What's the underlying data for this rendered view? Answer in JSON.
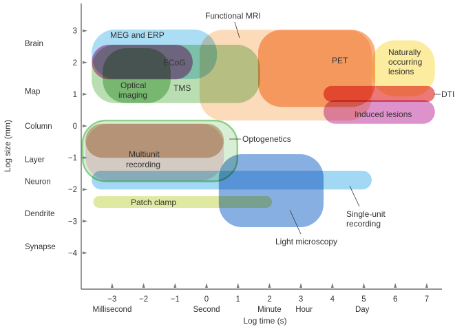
{
  "chart_data": {
    "type": "diagram",
    "xlabel": "Log time (s)",
    "ylabel": "Log size (mm)",
    "xlim": [
      -3.95,
      7.4
    ],
    "ylim": [
      -5.2,
      3.85
    ],
    "x_ticks": [
      -3,
      -2,
      -1,
      0,
      1,
      2,
      3,
      4,
      5,
      6,
      7
    ],
    "x_tick_labels": [
      "−3",
      "−2",
      "−1",
      "0",
      "1",
      "2",
      "3",
      "4",
      "5",
      "6",
      "7"
    ],
    "y_ticks": [
      3,
      2,
      1,
      0,
      -1,
      -2,
      -3,
      -4
    ],
    "y_tick_labels": [
      "3",
      "2",
      "1",
      "0",
      "−1",
      "−2",
      "−3",
      "−4"
    ],
    "time_labels": [
      {
        "text": "Millisecond",
        "x": -3
      },
      {
        "text": "Second",
        "x": 0
      },
      {
        "text": "Minute",
        "x": 2
      },
      {
        "text": "Hour",
        "x": 3.1
      },
      {
        "text": "Day",
        "x": 4.95
      }
    ],
    "size_labels": [
      {
        "text": "Brain",
        "y": 2.6
      },
      {
        "text": "Map",
        "y": 1.1
      },
      {
        "text": "Column",
        "y": 0
      },
      {
        "text": "Layer",
        "y": -1.05
      },
      {
        "text": "Neuron",
        "y": -1.75
      },
      {
        "text": "Dendrite",
        "y": -2.75
      },
      {
        "text": "Synapse",
        "y": -3.8
      }
    ],
    "regions": [
      {
        "name": "Functional MRI",
        "x": [
          -0.22,
          5.25
        ],
        "y": [
          0.17,
          3.03
        ],
        "color": "#fbd3ab"
      },
      {
        "name": "PET",
        "x": [
          1.64,
          5.36
        ],
        "y": [
          0.6,
          3.03
        ],
        "color": "#f5a065"
      },
      {
        "name": "Naturally occurring lesions",
        "x": [
          5.25,
          7.26
        ],
        "y": [
          0.93,
          2.7
        ],
        "color": "#fbe88a"
      },
      {
        "name": "MEG and ERP",
        "x": [
          -3.65,
          0.33
        ],
        "y": [
          1.48,
          3.04
        ],
        "color": "#98d6f2"
      },
      {
        "name": "TMS",
        "x": [
          -3.65,
          1.7
        ],
        "y": [
          0.72,
          2.56
        ],
        "color": "#a8d7a0"
      },
      {
        "name": "ECoG",
        "x": [
          -3.65,
          -0.44
        ],
        "y": [
          1.47,
          2.56
        ],
        "color": "#dc6ab0"
      },
      {
        "name": "Optical imaging",
        "x": [
          -3.3,
          -1.14
        ],
        "y": [
          0.72,
          2.45
        ],
        "color": "#93c98c"
      },
      {
        "name": "DTI",
        "x": [
          3.72,
          7.26
        ],
        "y": [
          0.76,
          1.26
        ],
        "color": "#e85a5a"
      },
      {
        "name": "Induced lesions",
        "x": [
          3.72,
          7.26
        ],
        "y": [
          0.07,
          0.82
        ],
        "color": "#d77abf"
      },
      {
        "name": "Multiunit recording",
        "x": [
          -3.85,
          0.55
        ],
        "y": [
          -1.72,
          0.07
        ],
        "color": "#f9d0e2"
      },
      {
        "name": "Multiunit recording (core)",
        "x": [
          -3.85,
          0.55
        ],
        "y": [
          -1.0,
          0.07
        ],
        "color": "#d2a985"
      },
      {
        "name": "Optogenetics",
        "x": [
          -3.94,
          0.98
        ],
        "y": [
          -1.74,
          0.17
        ],
        "color": "#8fd08a",
        "outline": true
      },
      {
        "name": "Single-unit recording",
        "x": [
          -3.65,
          5.25
        ],
        "y": [
          -2.0,
          -1.41
        ],
        "color": "#8fd0f2"
      },
      {
        "name": "Light microscopy",
        "x": [
          0.39,
          3.72
        ],
        "y": [
          -3.19,
          -0.89
        ],
        "color": "#6e9edb"
      },
      {
        "name": "Patch clamp",
        "x": [
          -3.6,
          2.08
        ],
        "y": [
          -2.58,
          -2.21
        ],
        "color": "#d9e48c"
      }
    ],
    "labels": {
      "meg": "MEG and ERP",
      "ecog": "ECoG",
      "optical1": "Optical",
      "optical2": "imaging",
      "tms": "TMS",
      "fmri": "Functional MRI",
      "pet": "PET",
      "nat1": "Naturally",
      "nat2": "occurring",
      "nat3": "lesions",
      "dti": "DTI",
      "induced": "Induced lesions",
      "opto": "Optogenetics",
      "multi1": "Multiunit",
      "multi2": "recording",
      "patch": "Patch clamp",
      "single1": "Single-unit",
      "single2": "recording",
      "light": "Light microscopy"
    }
  }
}
